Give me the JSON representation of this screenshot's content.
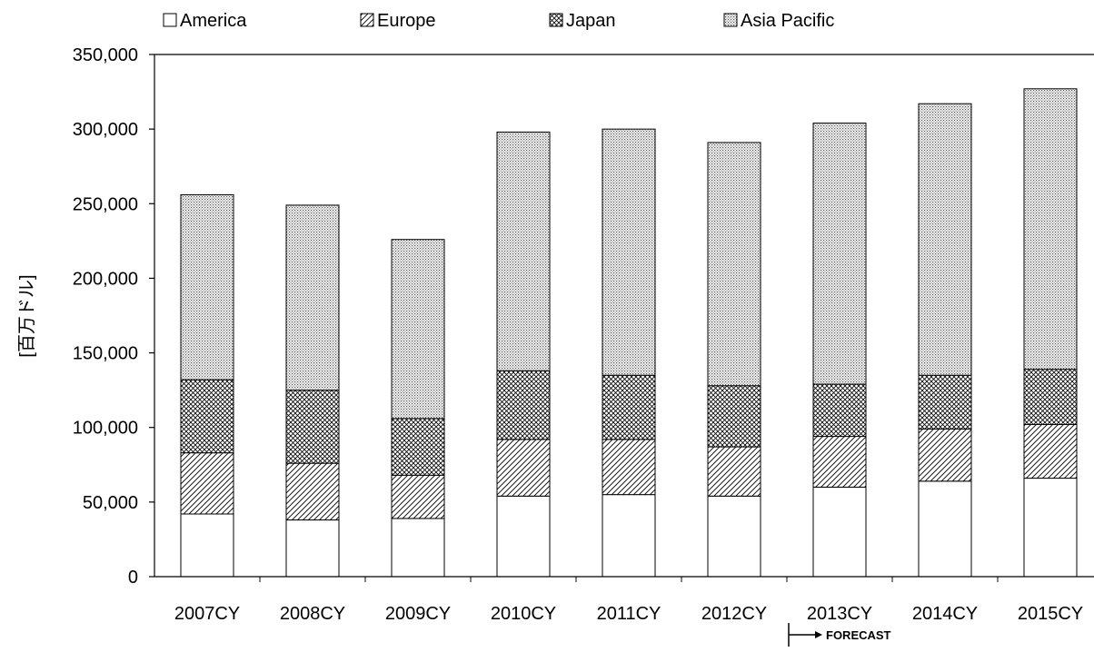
{
  "chart_data": {
    "type": "bar",
    "stacked": true,
    "categories": [
      "2007CY",
      "2008CY",
      "2009CY",
      "2010CY",
      "2011CY",
      "2012CY",
      "2013CY",
      "2014CY",
      "2015CY"
    ],
    "series": [
      {
        "name": "America",
        "values": [
          42000,
          38000,
          39000,
          54000,
          55000,
          54000,
          60000,
          64000,
          66000
        ]
      },
      {
        "name": "Europe",
        "values": [
          41000,
          38000,
          29000,
          38000,
          37000,
          33000,
          34000,
          35000,
          36000
        ]
      },
      {
        "name": "Japan",
        "values": [
          49000,
          49000,
          38000,
          46000,
          43000,
          41000,
          35000,
          36000,
          37000
        ]
      },
      {
        "name": "Asia Pacific",
        "values": [
          124000,
          124000,
          120000,
          160000,
          165000,
          163000,
          175000,
          182000,
          188000
        ]
      }
    ],
    "ylabel": "[百万ドル]",
    "ylim": [
      0,
      350000
    ],
    "yticks": [
      "0",
      "50,000",
      "100,000",
      "150,000",
      "200,000",
      "250,000",
      "300,000",
      "350,000"
    ],
    "legend_position": "top",
    "grid": false,
    "annotation": "FORECAST",
    "fills": {
      "America": "#ffffff",
      "Europe": "diagonal-hatch",
      "Japan": "crosshatch",
      "Asia Pacific": "dots"
    }
  }
}
